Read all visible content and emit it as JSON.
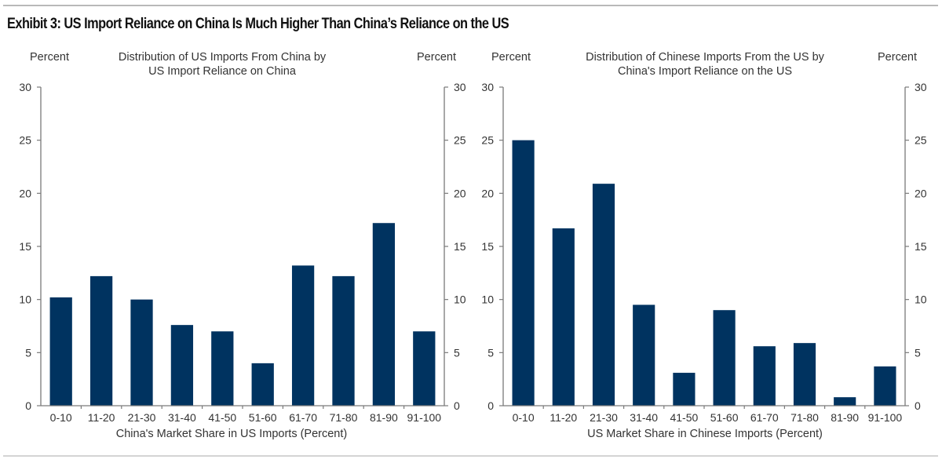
{
  "exhibit": {
    "title": "Exhibit 3: US Import Reliance on China Is Much Higher Than China’s Reliance on the US"
  },
  "colors": {
    "bar": "#003360",
    "axis": "#7a7a7a",
    "text": "#333333"
  },
  "chart_data": [
    {
      "type": "bar",
      "title": "Distribution of US Imports From China by US Import Reliance on China",
      "title_lines": [
        "Distribution of US Imports From China by",
        "US Import Reliance on China"
      ],
      "ylabel_left": "Percent",
      "ylabel_right": "Percent",
      "xlabel": "China's Market Share in US Imports (Percent)",
      "categories": [
        "0-10",
        "11-20",
        "21-30",
        "31-40",
        "41-50",
        "51-60",
        "61-70",
        "71-80",
        "81-90",
        "91-100"
      ],
      "values": [
        10.2,
        12.2,
        10.0,
        7.6,
        7.0,
        4.0,
        13.2,
        12.2,
        17.2,
        7.0
      ],
      "ylim": [
        0,
        30
      ],
      "yticks": [
        0,
        5,
        10,
        15,
        20,
        25,
        30
      ],
      "grid": false,
      "legend": "none"
    },
    {
      "type": "bar",
      "title": "Distribution of Chinese Imports From the US by China's Import Reliance on the US",
      "title_lines": [
        "Distribution of Chinese Imports From the US by",
        "China's Import Reliance on the US"
      ],
      "ylabel_left": "Percent",
      "ylabel_right": "Percent",
      "xlabel": "US Market Share in Chinese Imports (Percent)",
      "categories": [
        "0-10",
        "11-20",
        "21-30",
        "31-40",
        "41-50",
        "51-60",
        "61-70",
        "71-80",
        "81-90",
        "91-100"
      ],
      "values": [
        25.0,
        16.7,
        20.9,
        9.5,
        3.1,
        9.0,
        5.6,
        5.9,
        0.8,
        3.7
      ],
      "ylim": [
        0,
        30
      ],
      "yticks": [
        0,
        5,
        10,
        15,
        20,
        25,
        30
      ],
      "grid": false,
      "legend": "none"
    }
  ]
}
